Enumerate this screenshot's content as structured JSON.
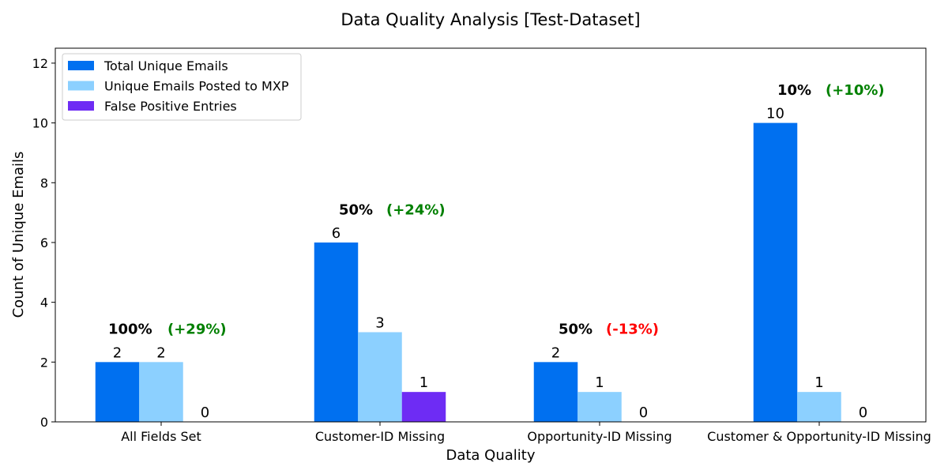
{
  "chart_data": {
    "type": "bar",
    "title": "Data Quality Analysis [Test-Dataset]",
    "xlabel": "Data Quality",
    "ylabel": "Count of Unique Emails",
    "ylim": [
      0,
      12.5
    ],
    "yticks": [
      "0",
      "2",
      "4",
      "6",
      "8",
      "10",
      "12"
    ],
    "grid": false,
    "legend_position": "top-left",
    "categories": [
      "All Fields Set",
      "Customer-ID Missing",
      "Opportunity-ID Missing",
      "Customer & Opportunity-ID Missing"
    ],
    "series": [
      {
        "name": "Total Unique Emails",
        "color": "#0070f0",
        "values": [
          2,
          6,
          2,
          10
        ],
        "labels": [
          "2",
          "6",
          "2",
          "10"
        ]
      },
      {
        "name": "Unique Emails Posted to MXP",
        "color": "#8cd0ff",
        "values": [
          2,
          3,
          1,
          1
        ],
        "labels": [
          "2",
          "3",
          "1",
          "1"
        ]
      },
      {
        "name": "False Positive Entries",
        "color": "#6e2cf4",
        "values": [
          0,
          1,
          0,
          0
        ],
        "labels": [
          "0",
          "1",
          "0",
          "0"
        ]
      }
    ],
    "annotations": [
      {
        "rate": "100%",
        "change": "(+29%)",
        "change_color": "#008000"
      },
      {
        "rate": "50%",
        "change": "(+24%)",
        "change_color": "#008000"
      },
      {
        "rate": "50%",
        "change": "(-13%)",
        "change_color": "#ff0000"
      },
      {
        "rate": "10%",
        "change": "(+10%)",
        "change_color": "#008000"
      }
    ]
  }
}
